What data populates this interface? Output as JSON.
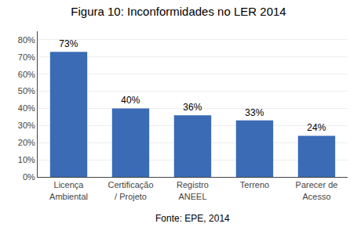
{
  "chart_data": {
    "type": "bar",
    "title": "Figura 10: Inconformidades no LER 2014",
    "categories": [
      "Licença\nAmbiental",
      "Certificação\n/ Projeto",
      "Registro\nANEEL",
      "Terreno",
      "Parecer de\nAcesso"
    ],
    "values": [
      73,
      40,
      36,
      33,
      24
    ],
    "value_labels": [
      "73%",
      "40%",
      "36%",
      "33%",
      "24%"
    ],
    "data_labels": true,
    "color": "#3B6BB5",
    "ylim": [
      0,
      85
    ],
    "yticks": [
      {
        "value": 0,
        "label": "0%"
      },
      {
        "value": 10,
        "label": "10%"
      },
      {
        "value": 20,
        "label": "20%"
      },
      {
        "value": 30,
        "label": "30%"
      },
      {
        "value": 40,
        "label": "40%"
      },
      {
        "value": 50,
        "label": "50%"
      },
      {
        "value": 60,
        "label": "60%"
      },
      {
        "value": 70,
        "label": "70%"
      },
      {
        "value": 80,
        "label": "80%"
      }
    ],
    "grid": true,
    "annotations": [
      "Fonte: EPE, 2014"
    ]
  }
}
